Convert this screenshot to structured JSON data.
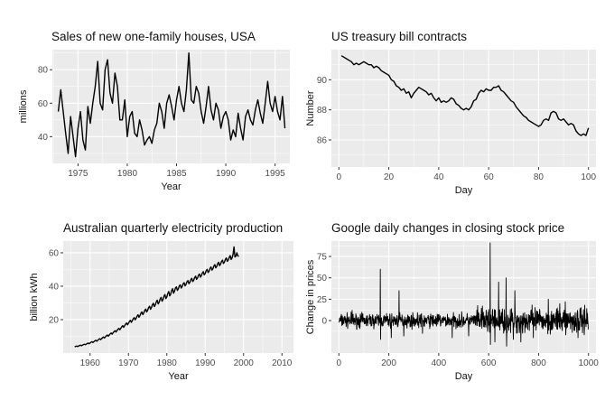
{
  "chart_data": [
    {
      "type": "line",
      "title": "Sales of new one-family houses, USA",
      "xlabel": "Year",
      "ylabel": "millions",
      "xlim": [
        1972.4,
        1996.5
      ],
      "ylim": [
        24,
        92
      ],
      "xticks": [
        1975,
        1980,
        1985,
        1990,
        1995
      ],
      "yticks": [
        40,
        60,
        80
      ],
      "grid": true,
      "background": "#ebebeb",
      "series": [
        {
          "x": [
            1973.0,
            1973.25,
            1973.5,
            1973.75,
            1974.0,
            1974.25,
            1974.5,
            1974.75,
            1975.0,
            1975.25,
            1975.5,
            1975.75,
            1976.0,
            1976.25,
            1976.5,
            1976.75,
            1977.0,
            1977.25,
            1977.5,
            1977.75,
            1978.0,
            1978.25,
            1978.5,
            1978.75,
            1979.0,
            1979.25,
            1979.5,
            1979.75,
            1980.0,
            1980.25,
            1980.5,
            1980.75,
            1981.0,
            1981.25,
            1981.5,
            1981.75,
            1982.0,
            1982.25,
            1982.5,
            1982.75,
            1983.0,
            1983.25,
            1983.5,
            1983.75,
            1984.0,
            1984.25,
            1984.5,
            1984.75,
            1985.0,
            1985.25,
            1985.5,
            1985.75,
            1986.0,
            1986.25,
            1986.5,
            1986.75,
            1987.0,
            1987.25,
            1987.5,
            1987.75,
            1988.0,
            1988.25,
            1988.5,
            1988.75,
            1989.0,
            1989.25,
            1989.5,
            1989.75,
            1990.0,
            1990.25,
            1990.5,
            1990.75,
            1991.0,
            1991.25,
            1991.5,
            1991.75,
            1992.0,
            1992.25,
            1992.5,
            1992.75,
            1993.0,
            1993.25,
            1993.5,
            1993.75,
            1994.0,
            1994.25,
            1994.5,
            1994.75,
            1995.0,
            1995.25,
            1995.5,
            1995.75,
            1996.0
          ],
          "y": [
            55,
            68,
            55,
            42,
            30,
            52,
            40,
            28,
            45,
            55,
            38,
            32,
            58,
            48,
            60,
            70,
            85,
            60,
            56,
            80,
            86,
            66,
            60,
            78,
            70,
            50,
            50,
            62,
            40,
            52,
            55,
            42,
            40,
            50,
            44,
            35,
            38,
            40,
            36,
            44,
            48,
            60,
            55,
            45,
            60,
            65,
            58,
            50,
            62,
            70,
            60,
            55,
            68,
            90,
            62,
            60,
            70,
            66,
            55,
            48,
            58,
            70,
            56,
            50,
            60,
            56,
            45,
            52,
            55,
            50,
            38,
            44,
            40,
            54,
            45,
            38,
            52,
            56,
            50,
            47,
            56,
            62,
            54,
            48,
            60,
            73,
            60,
            55,
            64,
            55,
            50,
            64,
            45
          ]
        }
      ]
    },
    {
      "type": "line",
      "title": "US treasury bill contracts",
      "xlabel": "Day",
      "ylabel": "Number",
      "xlim": [
        -3,
        103
      ],
      "ylim": [
        84.2,
        92.0
      ],
      "xticks": [
        0,
        20,
        40,
        60,
        80,
        100
      ],
      "yticks": [
        86,
        88,
        90
      ],
      "grid": true,
      "background": "#ebebeb",
      "series": [
        {
          "x": [
            1,
            2,
            3,
            4,
            5,
            6,
            7,
            8,
            9,
            10,
            11,
            12,
            13,
            14,
            15,
            16,
            17,
            18,
            19,
            20,
            21,
            22,
            23,
            24,
            25,
            26,
            27,
            28,
            29,
            30,
            31,
            32,
            33,
            34,
            35,
            36,
            37,
            38,
            39,
            40,
            41,
            42,
            43,
            44,
            45,
            46,
            47,
            48,
            49,
            50,
            51,
            52,
            53,
            54,
            55,
            56,
            57,
            58,
            59,
            60,
            61,
            62,
            63,
            64,
            65,
            66,
            67,
            68,
            69,
            70,
            71,
            72,
            73,
            74,
            75,
            76,
            77,
            78,
            79,
            80,
            81,
            82,
            83,
            84,
            85,
            86,
            87,
            88,
            89,
            90,
            91,
            92,
            93,
            94,
            95,
            96,
            97,
            98,
            99,
            100
          ],
          "y": [
            91.6,
            91.5,
            91.4,
            91.3,
            91.2,
            91.0,
            91.1,
            91.0,
            91.1,
            91.2,
            91.1,
            91.0,
            91.0,
            90.8,
            90.9,
            90.8,
            90.6,
            90.5,
            90.4,
            90.3,
            90.0,
            89.9,
            89.6,
            89.5,
            89.3,
            89.4,
            89.1,
            89.2,
            88.8,
            89.1,
            89.3,
            89.5,
            89.4,
            89.3,
            89.2,
            89.0,
            89.1,
            88.8,
            88.6,
            88.8,
            88.5,
            88.6,
            88.5,
            88.6,
            88.8,
            88.7,
            88.4,
            88.3,
            88.1,
            88.0,
            88.1,
            88.0,
            88.2,
            88.6,
            88.7,
            89.1,
            89.3,
            89.2,
            89.4,
            89.3,
            89.3,
            89.5,
            89.5,
            89.6,
            89.3,
            89.2,
            89.0,
            88.8,
            88.6,
            88.5,
            88.2,
            88.0,
            87.8,
            87.6,
            87.5,
            87.3,
            87.2,
            87.1,
            87.0,
            86.9,
            87.0,
            87.3,
            87.4,
            87.3,
            87.8,
            87.9,
            87.8,
            87.4,
            87.3,
            87.4,
            87.2,
            87.0,
            87.1,
            87.0,
            86.6,
            86.4,
            86.3,
            86.4,
            86.3,
            86.8
          ]
        }
      ]
    },
    {
      "type": "line",
      "title": "Australian quarterly electricity production",
      "xlabel": "Year",
      "ylabel": "billion kWh",
      "xlim": [
        1953.0,
        2013.0
      ],
      "ylim": [
        0,
        67
      ],
      "xticks": [
        1960,
        1970,
        1980,
        1990,
        2000,
        2010
      ],
      "yticks": [
        20,
        40,
        60
      ],
      "grid": true,
      "background": "#ebebeb",
      "series": [
        {
          "x_start": 1956.0,
          "x_step": 0.25,
          "y": [
            3.7,
            4.0,
            4.2,
            3.9,
            4.2,
            4.5,
            4.7,
            4.4,
            4.7,
            5.0,
            5.3,
            5.0,
            5.3,
            5.7,
            6.0,
            5.6,
            6.0,
            6.5,
            6.8,
            6.3,
            6.8,
            7.3,
            7.6,
            7.1,
            7.6,
            8.2,
            8.6,
            8.0,
            8.6,
            9.2,
            9.6,
            9.0,
            9.7,
            10.3,
            10.8,
            10.1,
            10.8,
            11.5,
            12.0,
            11.3,
            12.1,
            12.8,
            13.4,
            12.6,
            13.4,
            14.2,
            14.8,
            13.9,
            14.8,
            15.7,
            16.4,
            15.4,
            16.3,
            17.3,
            18.0,
            16.9,
            17.8,
            18.9,
            19.6,
            18.4,
            19.3,
            20.5,
            21.2,
            19.9,
            20.8,
            22.1,
            22.9,
            21.4,
            22.4,
            23.8,
            24.6,
            23.0,
            24.0,
            25.5,
            26.3,
            24.6,
            25.6,
            27.2,
            28.0,
            26.2,
            27.2,
            28.9,
            29.8,
            27.8,
            28.8,
            30.6,
            31.6,
            29.4,
            30.4,
            32.3,
            33.3,
            31.0,
            32.0,
            34.0,
            35.0,
            32.6,
            33.6,
            35.7,
            36.8,
            34.2,
            35.2,
            37.4,
            38.5,
            35.8,
            37.0,
            39.0,
            39.6,
            37.5,
            38.4,
            40.2,
            40.8,
            38.9,
            39.8,
            41.4,
            42.1,
            40.2,
            41.1,
            42.7,
            43.4,
            41.5,
            42.3,
            43.9,
            44.7,
            42.8,
            43.6,
            45.2,
            46.0,
            44.1,
            44.9,
            46.5,
            47.3,
            45.4,
            46.3,
            47.9,
            48.7,
            46.8,
            47.6,
            49.3,
            50.1,
            48.2,
            49.0,
            50.6,
            51.5,
            49.6,
            50.4,
            52.0,
            52.9,
            51.0,
            51.8,
            53.5,
            54.3,
            52.3,
            53.2,
            54.8,
            55.6,
            53.6,
            54.4,
            56.0,
            56.9,
            54.9,
            55.6,
            57.2,
            58.3,
            56.0,
            57.0,
            59.0,
            63.5,
            57.5,
            58.0,
            60.0,
            58.2,
            57.8
          ]
        }
      ]
    },
    {
      "type": "line",
      "title": "Google daily changes in closing stock price",
      "xlabel": "Day",
      "ylabel": "Change in prices",
      "xlim": [
        -30,
        1030
      ],
      "ylim": [
        -38,
        93
      ],
      "xticks": [
        0,
        200,
        400,
        600,
        800,
        1000
      ],
      "yticks": [
        0,
        25,
        50,
        75
      ],
      "grid": true,
      "background": "#ebebeb",
      "series": [
        {
          "x_start": 1,
          "x_step": 1,
          "n": 999,
          "noise": {
            "seed": 7,
            "scale_base": 5,
            "scale_extra": 4,
            "clip": [
              -22,
              22
            ]
          },
          "spikes": [
            [
              53,
              12
            ],
            [
              166,
              60
            ],
            [
              167,
              -22
            ],
            [
              210,
              -20
            ],
            [
              241,
              35
            ],
            [
              260,
              -18
            ],
            [
              335,
              -15
            ],
            [
              454,
              -20
            ],
            [
              520,
              -18
            ],
            [
              606,
              91
            ],
            [
              607,
              -28
            ],
            [
              625,
              -25
            ],
            [
              640,
              45
            ],
            [
              670,
              50
            ],
            [
              672,
              -30
            ],
            [
              699,
              -22
            ],
            [
              705,
              35
            ],
            [
              729,
              -25
            ],
            [
              779,
              -20
            ],
            [
              839,
              25
            ],
            [
              907,
              22
            ],
            [
              958,
              -20
            ],
            [
              985,
              18
            ]
          ]
        }
      ]
    }
  ]
}
